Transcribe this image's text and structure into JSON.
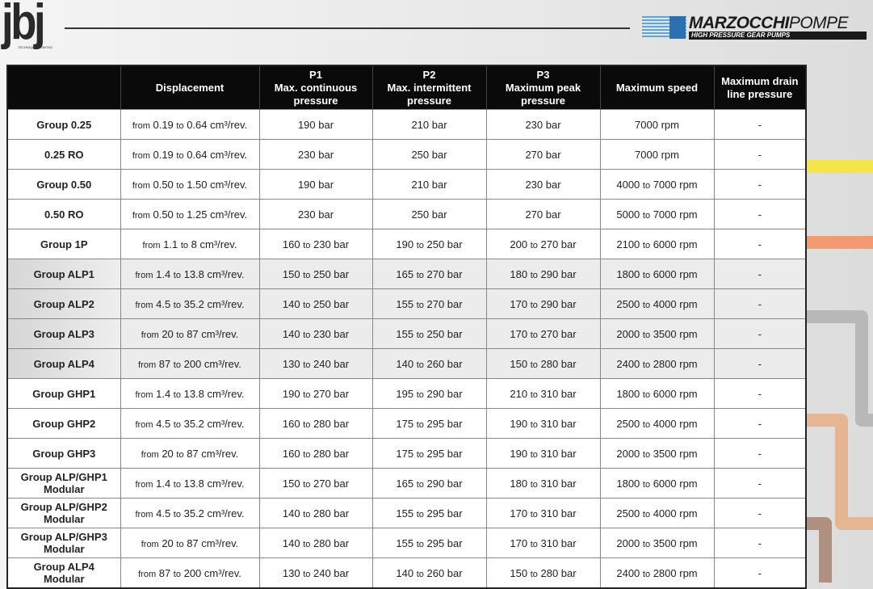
{
  "header": {
    "logo_left": "jbj",
    "logo_left_sub": "TECHNIQUES LIMITED",
    "logo_right": "MARZOCCHI",
    "logo_right_light": "POMPE",
    "logo_right_tag": "HIGH PRESSURE GEAR PUMPS"
  },
  "columns": [
    "",
    "Displacement",
    "P1\nMax. continuous pressure",
    "P2\nMax. intermittent pressure",
    "P3\nMaximum peak pressure",
    "Maximum speed",
    "Maximum drain line pressure"
  ],
  "rows": [
    [
      "Group 0.25",
      "from 0.19 to 0.64 cm³/rev.",
      "190 bar",
      "210 bar",
      "230 bar",
      "7000 rpm",
      "-"
    ],
    [
      "0.25 RO",
      "from 0.19 to 0.64 cm³/rev.",
      "230 bar",
      "250 bar",
      "270 bar",
      "7000 rpm",
      "-"
    ],
    [
      "Group 0.50",
      "from 0.50 to 1.50 cm³/rev.",
      "190 bar",
      "210 bar",
      "230 bar",
      "4000 to 7000 rpm",
      "-"
    ],
    [
      "0.50 RO",
      "from 0.50 to 1.25 cm³/rev.",
      "230 bar",
      "250 bar",
      "270 bar",
      "5000 to 7000 rpm",
      "-"
    ],
    [
      "Group 1P",
      "from 1.1 to 8 cm³/rev.",
      "160 to 230 bar",
      "190 to 250 bar",
      "200 to 270 bar",
      "2100 to 6000 rpm",
      "-"
    ],
    [
      "Group ALP1",
      "from 1.4 to 13.8 cm³/rev.",
      "150 to 250 bar",
      "165 to 270 bar",
      "180 to 290 bar",
      "1800 to 6000 rpm",
      "-"
    ],
    [
      "Group ALP2",
      "from 4.5 to 35.2 cm³/rev.",
      "140 to 250 bar",
      "155 to 270 bar",
      "170 to 290 bar",
      "2500 to 4000 rpm",
      "-"
    ],
    [
      "Group ALP3",
      "from 20 to 87 cm³/rev.",
      "140 to 230 bar",
      "155 to 250 bar",
      "170 to 270 bar",
      "2000 to 3500 rpm",
      "-"
    ],
    [
      "Group ALP4",
      "from 87 to 200 cm³/rev.",
      "130 to 240 bar",
      "140 to 260 bar",
      "150 to 280 bar",
      "2400 to 2800 rpm",
      "-"
    ],
    [
      "Group GHP1",
      "from 1.4 to 13.8 cm³/rev.",
      "190 to 270 bar",
      "195 to 290 bar",
      "210 to 310 bar",
      "1800 to 6000 rpm",
      "-"
    ],
    [
      "Group GHP2",
      "from 4.5 to 35.2 cm³/rev.",
      "160 to 280 bar",
      "175 to 295 bar",
      "190 to 310 bar",
      "2500 to 4000 rpm",
      "-"
    ],
    [
      "Group GHP3",
      "from 20 to 87 cm³/rev.",
      "160 to 280 bar",
      "175 to 295 bar",
      "190 to 310 bar",
      "2000 to 3500 rpm",
      "-"
    ],
    [
      "Group ALP/GHP1 Modular",
      "from 1.4 to 13.8 cm³/rev.",
      "150 to 270 bar",
      "165 to 290 bar",
      "180 to 310 bar",
      "1800 to 6000 rpm",
      "-"
    ],
    [
      "Group ALP/GHP2 Modular",
      "from 4.5 to 35.2 cm³/rev.",
      "140 to 280 bar",
      "155 to 295 bar",
      "170 to 310 bar",
      "2500 to 4000 rpm",
      "-"
    ],
    [
      "Group ALP/GHP3 Modular",
      "from 20 to 87 cm³/rev.",
      "140 to 280 bar",
      "155 to 295 bar",
      "170 to 310 bar",
      "2000 to 3500 rpm",
      "-"
    ],
    [
      "Group ALP4 Modular",
      "from 87 to 200 cm³/rev.",
      "130 to 240 bar",
      "140 to 260 bar",
      "150 to 280 bar",
      "2400 to 2800 rpm",
      "-"
    ]
  ],
  "colors": {
    "header_bg": "#0a0a0a",
    "yellow": "#f2e64a",
    "orange": "#f39a70",
    "gray": "#b8b8b8",
    "tan": "#e6b592"
  }
}
